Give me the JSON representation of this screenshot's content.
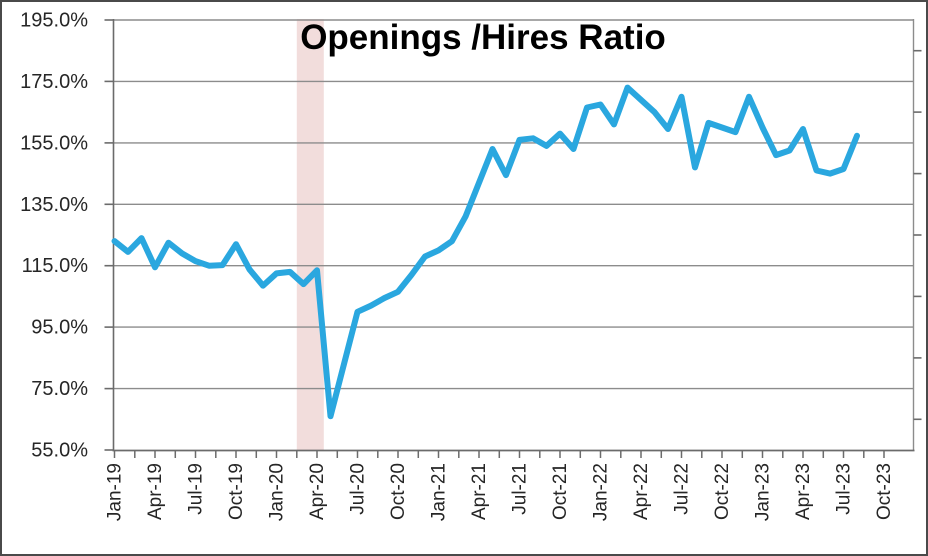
{
  "chart_data": {
    "type": "line",
    "title": "Openings /Hires Ratio",
    "x": [
      "Jan-19",
      "Feb-19",
      "Mar-19",
      "Apr-19",
      "May-19",
      "Jun-19",
      "Jul-19",
      "Aug-19",
      "Sep-19",
      "Oct-19",
      "Nov-19",
      "Dec-19",
      "Jan-20",
      "Feb-20",
      "Mar-20",
      "Apr-20",
      "May-20",
      "Jun-20",
      "Jul-20",
      "Aug-20",
      "Sep-20",
      "Oct-20",
      "Nov-20",
      "Dec-20",
      "Jan-21",
      "Feb-21",
      "Mar-21",
      "Apr-21",
      "May-21",
      "Jun-21",
      "Jul-21",
      "Aug-21",
      "Sep-21",
      "Oct-21",
      "Nov-21",
      "Dec-21",
      "Jan-22",
      "Feb-22",
      "Mar-22",
      "Apr-22",
      "May-22",
      "Jun-22",
      "Jul-22",
      "Aug-22",
      "Sep-22",
      "Oct-22",
      "Nov-22",
      "Dec-22",
      "Jan-23",
      "Feb-23",
      "Mar-23",
      "Apr-23",
      "May-23",
      "Jun-23",
      "Jul-23",
      "Aug-23"
    ],
    "series": [
      {
        "name": "Openings/Hires Ratio (%)",
        "values": [
          123,
          119.5,
          124,
          114.5,
          122.5,
          119,
          116.5,
          115,
          115.2,
          122,
          113.8,
          108.5,
          112.5,
          113,
          109,
          113.5,
          66,
          83,
          100,
          102,
          104.5,
          106.5,
          112,
          118,
          120,
          123,
          131,
          142,
          153,
          144.5,
          156,
          156.5,
          154,
          158,
          153,
          166.5,
          167.5,
          161,
          173,
          169,
          165,
          159.5,
          170,
          147,
          161.5,
          160,
          158.5,
          170,
          160,
          151,
          152.5,
          159.5,
          146,
          145,
          146.5,
          157.3
        ]
      }
    ],
    "x_tick_labels": [
      "Jan-19",
      "Apr-19",
      "Jul-19",
      "Oct-19",
      "Jan-20",
      "Apr-20",
      "Jul-20",
      "Oct-20",
      "Jan-21",
      "Apr-21",
      "Jul-21",
      "Oct-21",
      "Jan-22",
      "Apr-22",
      "Jul-22",
      "Oct-22",
      "Jan-23",
      "Apr-23",
      "Jul-23",
      "Oct-23"
    ],
    "y_tick_labels": [
      "195.0%",
      "175.0%",
      "155.0%",
      "135.0%",
      "115.0%",
      "95.0%",
      "75.0%",
      "55.0%"
    ],
    "ylim": [
      55,
      195
    ],
    "y_tick_step": 20,
    "grid": true,
    "legend": "none",
    "annotations": [
      {
        "name": "recession-band",
        "from": "Mar-20",
        "to": "Apr-20"
      }
    ],
    "colors": {
      "line": "#2AA7DF",
      "recession_band": "#F2DDDC",
      "gridline": "#8C8C8C",
      "axis": "#6B6B6B",
      "tick_label": "#262626",
      "title": "#000000",
      "background": "#FFFFFF",
      "outer_border": "#4A4A4A"
    }
  }
}
